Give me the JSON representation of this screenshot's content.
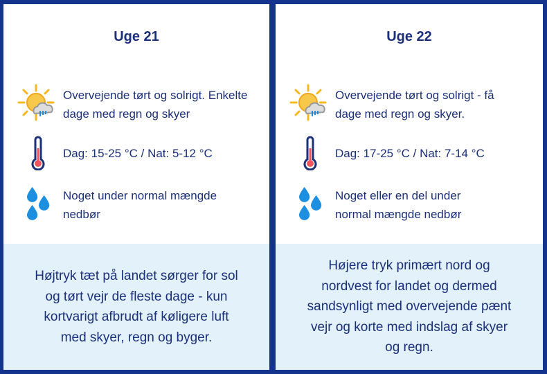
{
  "weeks": [
    {
      "title": "Uge 21",
      "weather": "Overvejende tørt og solrigt. Enkelte dage med regn og skyer",
      "temperature": "Dag: 15-25 °C / Nat: 5-12 °C",
      "precipitation": "Noget under normal mængde nedbør",
      "summary": "Højtryk tæt på landet sørger for sol og tørt vejr de fleste dage - kun kortvarigt afbrudt af køligere luft med skyer, regn og byger."
    },
    {
      "title": "Uge 22",
      "weather": "Overvejende tørt og solrigt - få dage med regn og skyer.",
      "temperature": "Dag: 17-25 °C / Nat: 7-14 °C",
      "precipitation": "Noget eller en del under normal mængde nedbør",
      "summary": "Højere tryk primært nord og nordvest for landet og dermed sandsynligt med overvejende pænt vejr og korte med indslag af skyer og regn."
    }
  ],
  "icons": {
    "weather": "sun-cloud-rain-icon",
    "temperature": "thermometer-icon",
    "precipitation": "raindrops-icon"
  },
  "colors": {
    "border": "#13338c",
    "text": "#1b2f7a",
    "summary_bg": "#e3f1fb",
    "sun": "#f6b81c",
    "drop": "#1d8fe0",
    "thermo": "#f0545c"
  }
}
